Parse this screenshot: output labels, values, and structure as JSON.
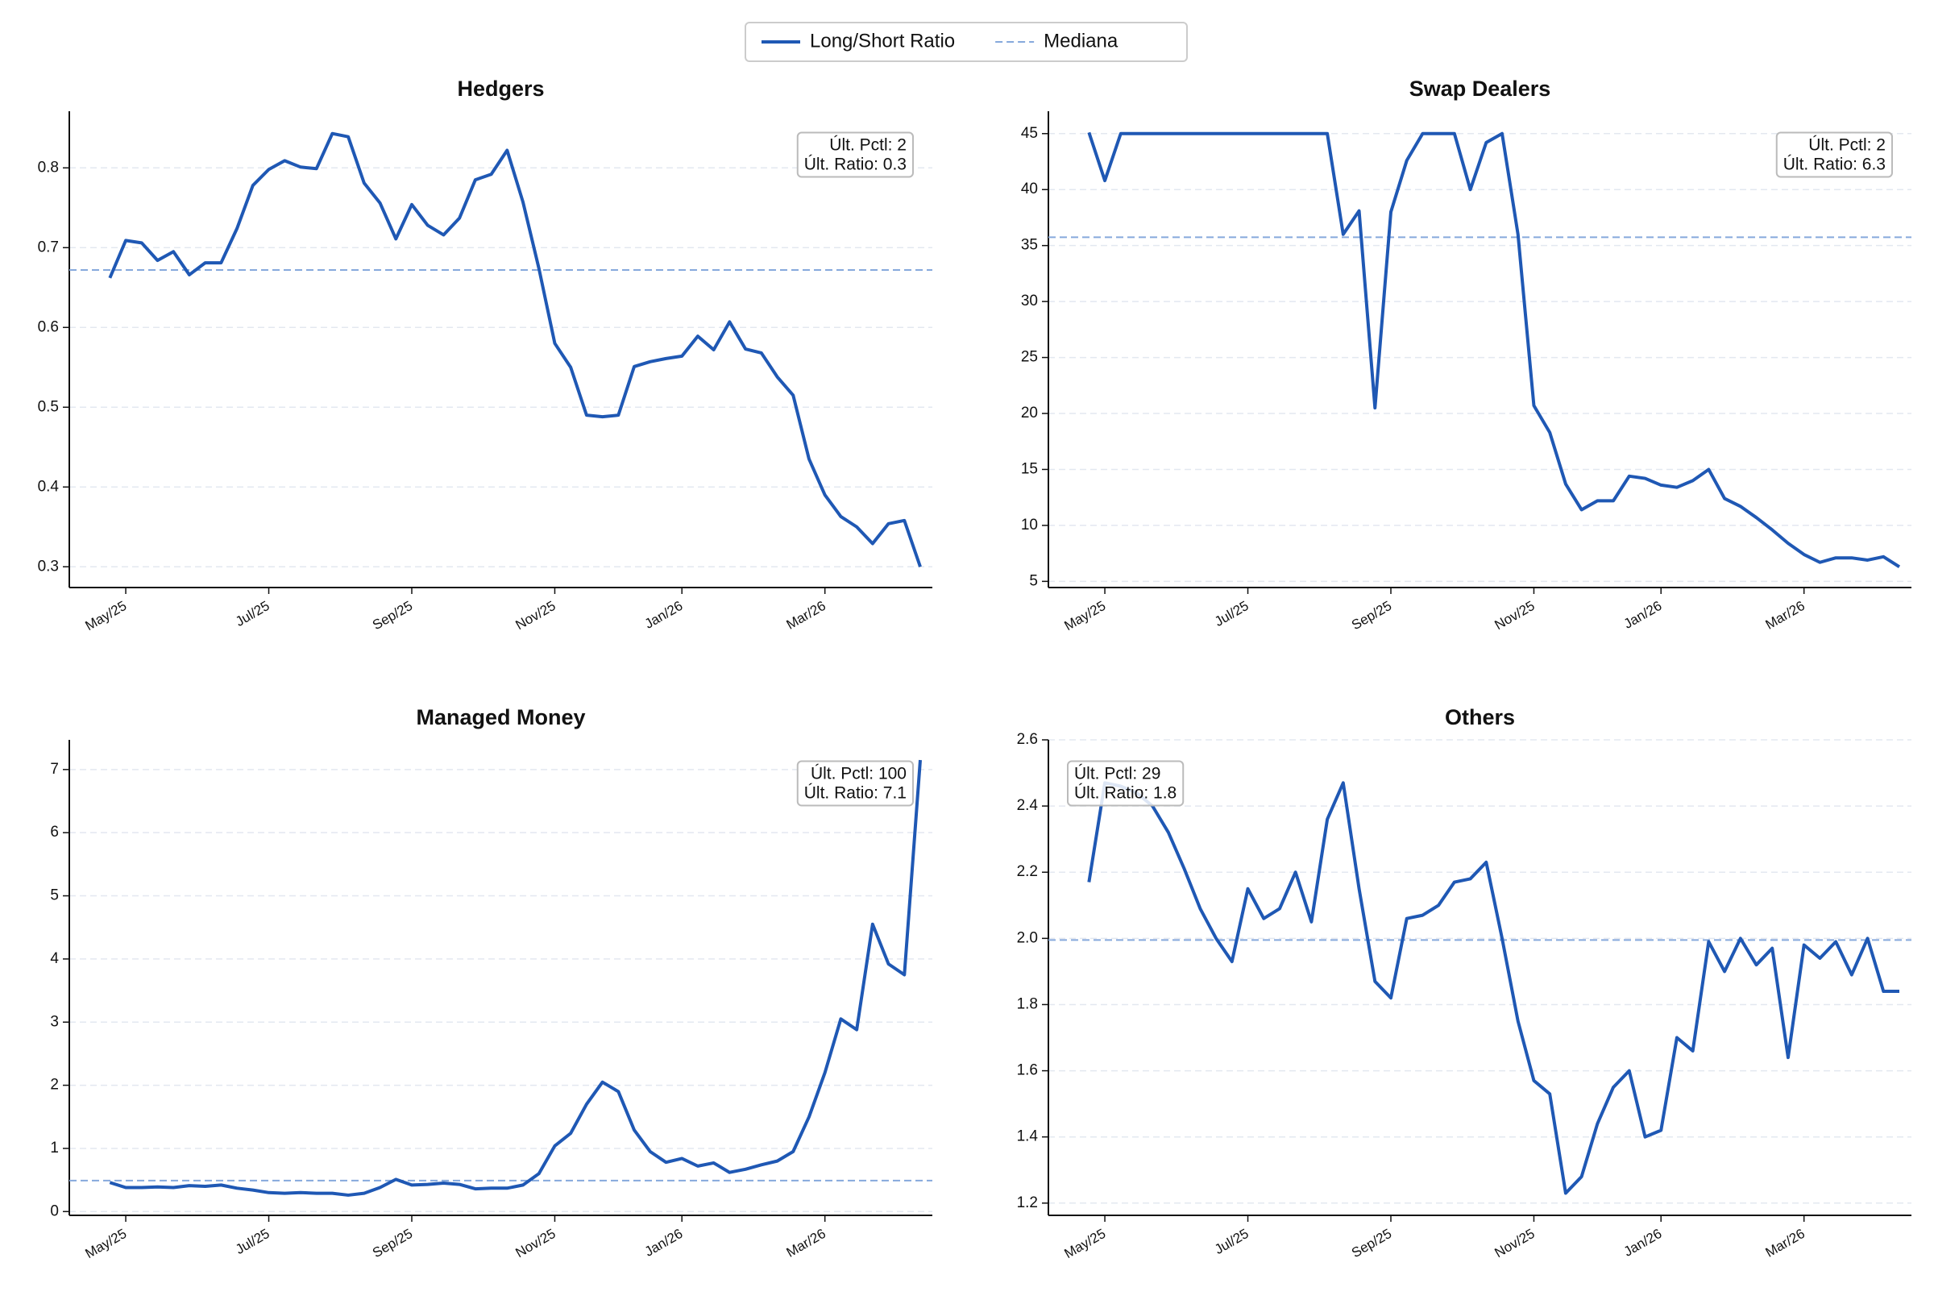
{
  "legend": [
    {
      "name": "Long/Short Ratio",
      "color": "#1f58b4",
      "style": "solid"
    },
    {
      "name": "Mediana",
      "color": "#86a9dc",
      "style": "dashed"
    }
  ],
  "chart_data": [
    {
      "type": "line",
      "title": "Hedgers",
      "categories": [
        null,
        "May/25",
        null,
        null,
        null,
        null,
        null,
        null,
        null,
        null,
        "Jul/25",
        null,
        null,
        null,
        null,
        null,
        null,
        null,
        null,
        "Sep/25",
        null,
        null,
        null,
        null,
        null,
        null,
        null,
        null,
        "Nov/25",
        null,
        null,
        null,
        null,
        null,
        null,
        null,
        "Jan/26",
        null,
        null,
        null,
        null,
        null,
        null,
        null,
        null,
        "Mar/26",
        null,
        null,
        null,
        null,
        null,
        null
      ],
      "series": [
        {
          "color": "#1f58b4",
          "values": [
            0.662,
            0.709,
            0.706,
            0.684,
            0.695,
            0.666,
            0.681,
            0.681,
            0.724,
            0.778,
            0.798,
            0.809,
            0.801,
            0.799,
            0.843,
            0.839,
            0.781,
            0.756,
            0.711,
            0.754,
            0.728,
            0.716,
            0.737,
            0.785,
            0.792,
            0.822,
            0.757,
            0.674,
            0.58,
            0.55,
            0.49,
            0.488,
            0.49,
            0.551,
            0.557,
            0.561,
            0.564,
            0.589,
            0.572,
            0.607,
            0.573,
            0.568,
            0.538,
            0.515,
            0.435,
            0.39,
            0.363,
            0.35,
            0.329,
            0.354,
            0.358,
            0.3
          ]
        }
      ],
      "median": 0.672,
      "median_color": "#86a9dc",
      "ylim": [
        0.274,
        0.871
      ],
      "yticks": [
        0.3,
        0.4,
        0.5,
        0.6,
        0.7,
        0.8
      ],
      "grid": true,
      "annotation": [
        "Últ. Pctl: 2",
        "Últ. Ratio: 0.3"
      ],
      "annotation_corner": "upper right"
    },
    {
      "type": "line",
      "title": "Swap Dealers",
      "categories": [
        null,
        "May/25",
        null,
        null,
        null,
        null,
        null,
        null,
        null,
        null,
        "Jul/25",
        null,
        null,
        null,
        null,
        null,
        null,
        null,
        null,
        "Sep/25",
        null,
        null,
        null,
        null,
        null,
        null,
        null,
        null,
        "Nov/25",
        null,
        null,
        null,
        null,
        null,
        null,
        null,
        "Jan/26",
        null,
        null,
        null,
        null,
        null,
        null,
        null,
        null,
        "Mar/26",
        null,
        null,
        null,
        null,
        null,
        null
      ],
      "series": [
        {
          "color": "#1f58b4",
          "values": [
            45.1,
            40.8,
            45.0,
            45.0,
            45.0,
            45.0,
            45.0,
            45.0,
            45.0,
            45.0,
            45.0,
            45.0,
            45.0,
            45.0,
            45.0,
            45.0,
            36.0,
            38.1,
            20.5,
            38.0,
            42.6,
            45.0,
            45.0,
            45.0,
            40.0,
            44.2,
            45.0,
            36.0,
            20.7,
            18.3,
            13.7,
            11.4,
            12.2,
            12.2,
            14.4,
            14.2,
            13.6,
            13.4,
            14.0,
            15.0,
            12.4,
            11.7,
            10.7,
            9.6,
            8.4,
            7.4,
            6.7,
            7.1,
            7.1,
            6.9,
            7.2,
            6.3
          ]
        }
      ],
      "median": 35.74,
      "median_color": "#86a9dc",
      "ylim": [
        4.45,
        47.0
      ],
      "yticks": [
        5,
        10,
        15,
        20,
        25,
        30,
        35,
        40,
        45
      ],
      "grid": true,
      "annotation": [
        "Últ. Pctl: 2",
        "Últ. Ratio: 6.3"
      ],
      "annotation_corner": "upper right"
    },
    {
      "type": "line",
      "title": "Managed Money",
      "categories": [
        null,
        "May/25",
        null,
        null,
        null,
        null,
        null,
        null,
        null,
        null,
        "Jul/25",
        null,
        null,
        null,
        null,
        null,
        null,
        null,
        null,
        "Sep/25",
        null,
        null,
        null,
        null,
        null,
        null,
        null,
        null,
        "Nov/25",
        null,
        null,
        null,
        null,
        null,
        null,
        null,
        "Jan/26",
        null,
        null,
        null,
        null,
        null,
        null,
        null,
        null,
        "Mar/26",
        null,
        null,
        null,
        null,
        null,
        null
      ],
      "series": [
        {
          "color": "#1f58b4",
          "values": [
            0.46,
            0.38,
            0.38,
            0.39,
            0.38,
            0.41,
            0.4,
            0.42,
            0.37,
            0.34,
            0.3,
            0.29,
            0.3,
            0.29,
            0.29,
            0.26,
            0.29,
            0.38,
            0.51,
            0.42,
            0.43,
            0.45,
            0.43,
            0.36,
            0.37,
            0.37,
            0.42,
            0.6,
            1.04,
            1.24,
            1.7,
            2.05,
            1.9,
            1.29,
            0.95,
            0.78,
            0.84,
            0.72,
            0.77,
            0.62,
            0.67,
            0.74,
            0.8,
            0.95,
            1.5,
            2.2,
            3.05,
            2.88,
            4.55,
            3.92,
            3.75,
            7.15
          ]
        }
      ],
      "median": 0.49,
      "median_color": "#86a9dc",
      "ylim": [
        -0.06,
        7.47
      ],
      "yticks": [
        0,
        1,
        2,
        3,
        4,
        5,
        6,
        7
      ],
      "grid": true,
      "annotation": [
        "Últ. Pctl: 100",
        "Últ. Ratio: 7.1"
      ],
      "annotation_corner": "upper right"
    },
    {
      "type": "line",
      "title": "Others",
      "categories": [
        null,
        "May/25",
        null,
        null,
        null,
        null,
        null,
        null,
        null,
        null,
        "Jul/25",
        null,
        null,
        null,
        null,
        null,
        null,
        null,
        null,
        "Sep/25",
        null,
        null,
        null,
        null,
        null,
        null,
        null,
        null,
        "Nov/25",
        null,
        null,
        null,
        null,
        null,
        null,
        null,
        "Jan/26",
        null,
        null,
        null,
        null,
        null,
        null,
        null,
        null,
        "Mar/26",
        null,
        null,
        null,
        null,
        null,
        null
      ],
      "series": [
        {
          "color": "#1f58b4",
          "values": [
            2.17,
            2.47,
            2.46,
            2.44,
            2.4,
            2.32,
            2.21,
            2.09,
            2.0,
            1.93,
            2.15,
            2.06,
            2.09,
            2.2,
            2.05,
            2.36,
            2.47,
            2.15,
            1.87,
            1.82,
            2.06,
            2.07,
            2.1,
            2.17,
            2.18,
            2.23,
            2.0,
            1.75,
            1.57,
            1.53,
            1.23,
            1.28,
            1.44,
            1.55,
            1.6,
            1.4,
            1.42,
            1.7,
            1.66,
            1.99,
            1.9,
            2.0,
            1.92,
            1.97,
            1.64,
            1.98,
            1.94,
            1.99,
            1.89,
            2.0,
            1.84,
            1.84
          ]
        }
      ],
      "median": 1.995,
      "median_color": "#86a9dc",
      "ylim": [
        1.163,
        2.6
      ],
      "yticks": [
        1.2,
        1.4,
        1.6,
        1.8,
        {
          "value": 2,
          "label": "2.0"
        },
        2.2,
        2.4,
        2.6
      ],
      "grid": true,
      "annotation": [
        "Últ. Pctl: 29",
        "Últ. Ratio: 1.8"
      ],
      "annotation_corner": "upper left"
    }
  ]
}
